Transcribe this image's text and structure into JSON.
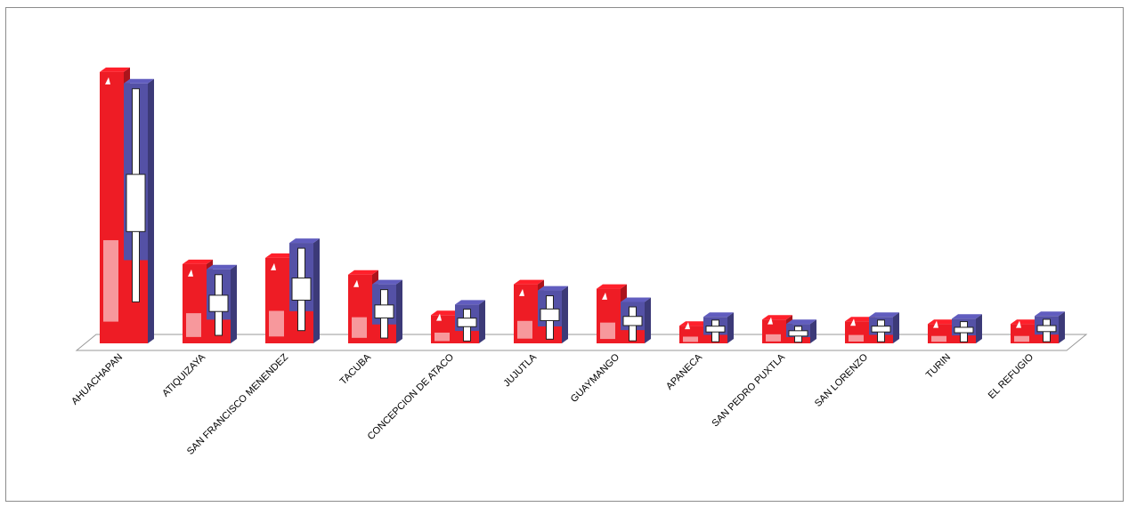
{
  "chart_data": {
    "type": "bar",
    "categories": [
      "AHUACHAPAN",
      "ATIQUIZAYA",
      "SAN FRANCISCO MENENDEZ",
      "TACUBA",
      "CONCEPCION DE ATACO",
      "JUJUTLA",
      "GUAYMANGO",
      "APANECA",
      "SAN PEDRO PUXTLA",
      "SAN LORENZO",
      "TURIN",
      "EL REFUGIO"
    ],
    "series": [
      {
        "name": "",
        "color": "#ee1c25",
        "logo": "fmln",
        "values": [
          308,
          90,
          97,
          78,
          32,
          67,
          62,
          20,
          27,
          25,
          22,
          22
        ]
      },
      {
        "name": "",
        "color": "#5451a6",
        "logo": "arena",
        "values": [
          295,
          84,
          114,
          67,
          44,
          60,
          47,
          30,
          22,
          30,
          28,
          31
        ]
      }
    ],
    "ylim": [
      0,
      320
    ],
    "gridlines": false,
    "legend": "none",
    "style": "3d-pictograph"
  }
}
